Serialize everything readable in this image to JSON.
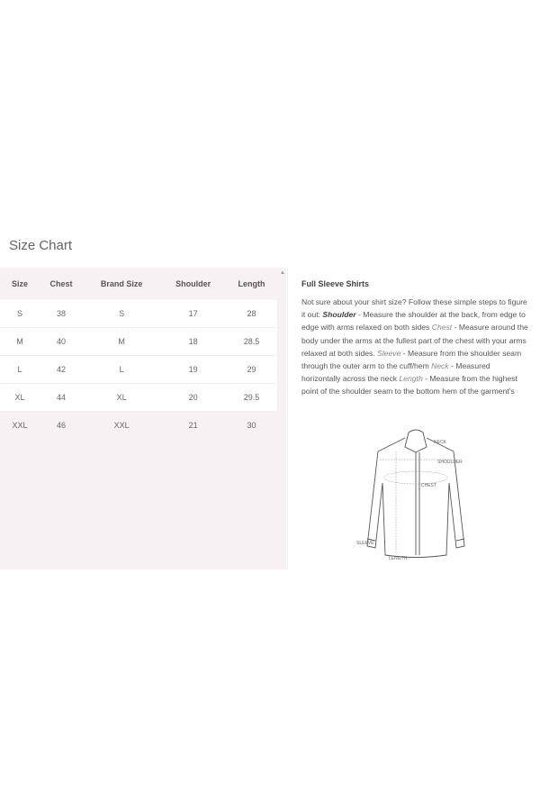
{
  "page_title": "Size Chart",
  "table": {
    "headers": [
      "Size",
      "Chest",
      "Brand Size",
      "Shoulder",
      "Length"
    ],
    "rows": [
      [
        "S",
        "38",
        "S",
        "17",
        "28"
      ],
      [
        "M",
        "40",
        "M",
        "18",
        "28.5"
      ],
      [
        "L",
        "42",
        "L",
        "19",
        "29"
      ],
      [
        "XL",
        "44",
        "XL",
        "20",
        "29.5"
      ],
      [
        "XXL",
        "46",
        "XXL",
        "21",
        "30"
      ]
    ]
  },
  "guide": {
    "heading": "Full Sleeve Shirts",
    "intro": "Not sure about your shirt size? Follow these simple steps to figure it out: ",
    "shoulder_term": "Shoulder",
    "shoulder_text": " - Measure the shoulder at the back, from edge to edge with arms relaxed on both sides ",
    "chest_term": "Chest",
    "chest_text": " - Measure around the body under the arms at the fullest part of the chest with your arms relaxed at both sides. ",
    "sleeve_term": "Sleeve",
    "sleeve_text": " - Measure from the shoulder seam through the outer arm to the cuff/hem ",
    "neck_term": "Neck",
    "neck_text": " - Measured horizontally across the neck ",
    "length_term": "Length",
    "length_text": " - Measure from the highest point of the shoulder seam to the bottom hem of the garment's"
  },
  "diagram": {
    "labels": {
      "neck": "NECK",
      "shoulder": "SHOULDER",
      "chest": "CHEST",
      "sleeve": "SLEEVE",
      "length": "LENGTH"
    }
  }
}
